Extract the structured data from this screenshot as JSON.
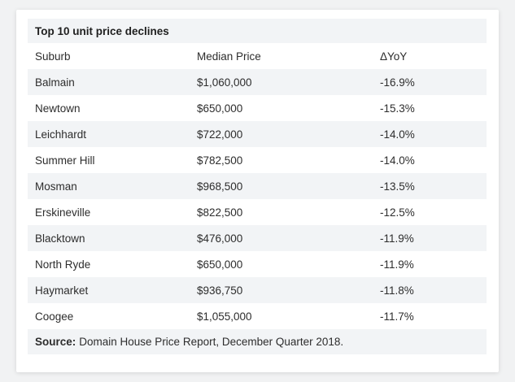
{
  "table": {
    "title": "Top 10 unit price declines",
    "headers": [
      "Suburb",
      "Median Price",
      "ΔYoY"
    ],
    "rows": [
      [
        "Balmain",
        "$1,060,000",
        "-16.9%"
      ],
      [
        "Newtown",
        "$650,000",
        "-15.3%"
      ],
      [
        "Leichhardt",
        "$722,000",
        "-14.0%"
      ],
      [
        "Summer Hill",
        "$782,500",
        "-14.0%"
      ],
      [
        "Mosman",
        "$968,500",
        "-13.5%"
      ],
      [
        "Erskineville",
        "$822,500",
        "-12.5%"
      ],
      [
        "Blacktown",
        "$476,000",
        "-11.9%"
      ],
      [
        "North Ryde",
        "$650,000",
        "-11.9%"
      ],
      [
        "Haymarket",
        "$936,750",
        "-11.8%"
      ],
      [
        "Coogee",
        "$1,055,000",
        "-11.7%"
      ]
    ],
    "source_label": "Source:",
    "source_text": "Domain House Price Report, December Quarter 2018."
  }
}
